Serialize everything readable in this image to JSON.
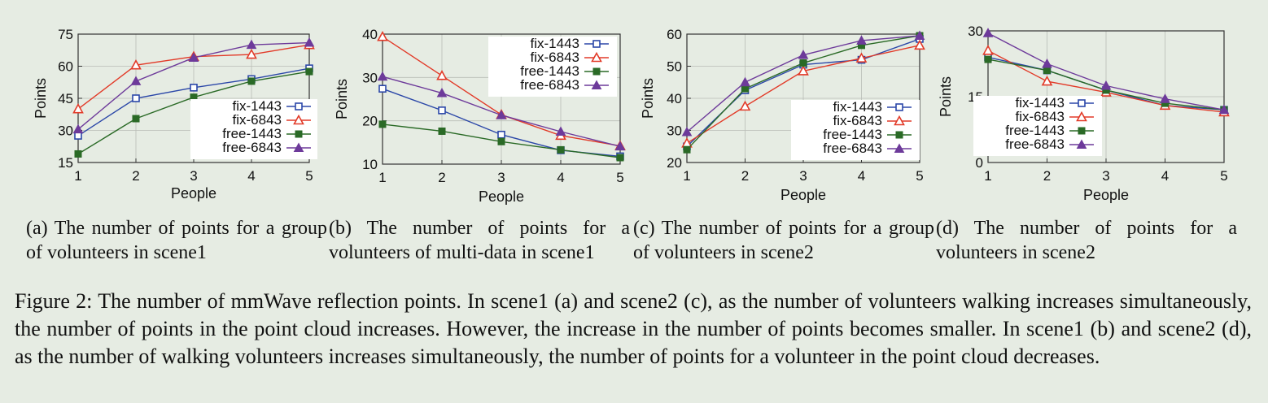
{
  "chart_data": [
    {
      "type": "line",
      "xlabel": "People",
      "ylabel": "Points",
      "x": [
        1,
        2,
        3,
        4,
        5
      ],
      "ylim": [
        15,
        75
      ],
      "yticks": [
        15,
        30,
        45,
        60,
        75
      ],
      "grid": true,
      "legend_position": "bottom-right",
      "series": [
        {
          "name": "fix-1443",
          "values": [
            27.5,
            45,
            50,
            54,
            59
          ]
        },
        {
          "name": "fix-6843",
          "values": [
            40,
            60.5,
            64.5,
            65.5,
            70
          ]
        },
        {
          "name": "free-1443",
          "values": [
            19,
            35.5,
            45.5,
            53,
            57.5
          ]
        },
        {
          "name": "free-6843",
          "values": [
            30.5,
            53,
            64,
            70,
            71
          ]
        }
      ]
    },
    {
      "type": "line",
      "xlabel": "People",
      "ylabel": "Points",
      "x": [
        1,
        2,
        3,
        4,
        5
      ],
      "ylim": [
        10,
        40
      ],
      "yticks": [
        10,
        20,
        30,
        40
      ],
      "grid": true,
      "legend_position": "top-right",
      "series": [
        {
          "name": "fix-1443",
          "values": [
            27.4,
            22.4,
            16.8,
            13.2,
            11.8
          ]
        },
        {
          "name": "fix-6843",
          "values": [
            39.4,
            30.4,
            21.4,
            16.6,
            14.2
          ]
        },
        {
          "name": "free-1443",
          "values": [
            19.2,
            17.6,
            15.2,
            13.3,
            11.5
          ]
        },
        {
          "name": "free-6843",
          "values": [
            30.2,
            26.4,
            21.3,
            17.5,
            14.1
          ]
        }
      ]
    },
    {
      "type": "line",
      "xlabel": "People",
      "ylabel": "Points",
      "x": [
        1,
        2,
        3,
        4,
        5
      ],
      "ylim": [
        20,
        60
      ],
      "yticks": [
        20,
        30,
        40,
        50,
        60
      ],
      "grid": true,
      "legend_position": "bottom-right",
      "series": [
        {
          "name": "fix-1443",
          "values": [
            25,
            42.5,
            50.5,
            52,
            58.5
          ]
        },
        {
          "name": "fix-6843",
          "values": [
            26,
            37.5,
            48.5,
            52.5,
            56.5
          ]
        },
        {
          "name": "free-1443",
          "values": [
            24,
            43,
            51,
            56.5,
            59.5
          ]
        },
        {
          "name": "free-6843",
          "values": [
            29.5,
            45,
            53.5,
            58,
            59.5
          ]
        }
      ]
    },
    {
      "type": "line",
      "xlabel": "People",
      "ylabel": "Points",
      "x": [
        1,
        2,
        3,
        4,
        5
      ],
      "ylim": [
        0,
        30
      ],
      "yticks": [
        0,
        15,
        30
      ],
      "grid": true,
      "legend_position": "bottom-left",
      "series": [
        {
          "name": "fix-1443",
          "values": [
            24,
            21,
            16.5,
            13,
            12
          ]
        },
        {
          "name": "fix-6843",
          "values": [
            25.5,
            18.5,
            16,
            13,
            11.5
          ]
        },
        {
          "name": "free-1443",
          "values": [
            23.5,
            21,
            16.5,
            13.5,
            12
          ]
        },
        {
          "name": "free-6843",
          "values": [
            29.5,
            22.5,
            17.5,
            14.5,
            12
          ]
        }
      ]
    }
  ],
  "colors": {
    "fix-1443": "#2b47a8",
    "fix-6843": "#e23a28",
    "free-1443": "#2a6a26",
    "free-6843": "#6d3a9a"
  },
  "subcaptions": [
    "(a) The number of points for a group of volunteers in scene1",
    "(b) The number of points for a volunteers of multi-data in scene1",
    "(c) The number of points for a group of volunteers in scene2",
    "(d) The number of points for a volunteers in scene2"
  ],
  "figure_caption": "Figure 2: The number of mmWave reflection points. In scene1 (a) and scene2 (c), as the number of volunteers walking increases simultaneously, the number of points in the point cloud increases. However, the increase in the number of points becomes smaller. In scene1 (b) and scene2 (d), as the number of walking volunteers increases simultaneously, the number of points for a volunteer in the point cloud decreases."
}
